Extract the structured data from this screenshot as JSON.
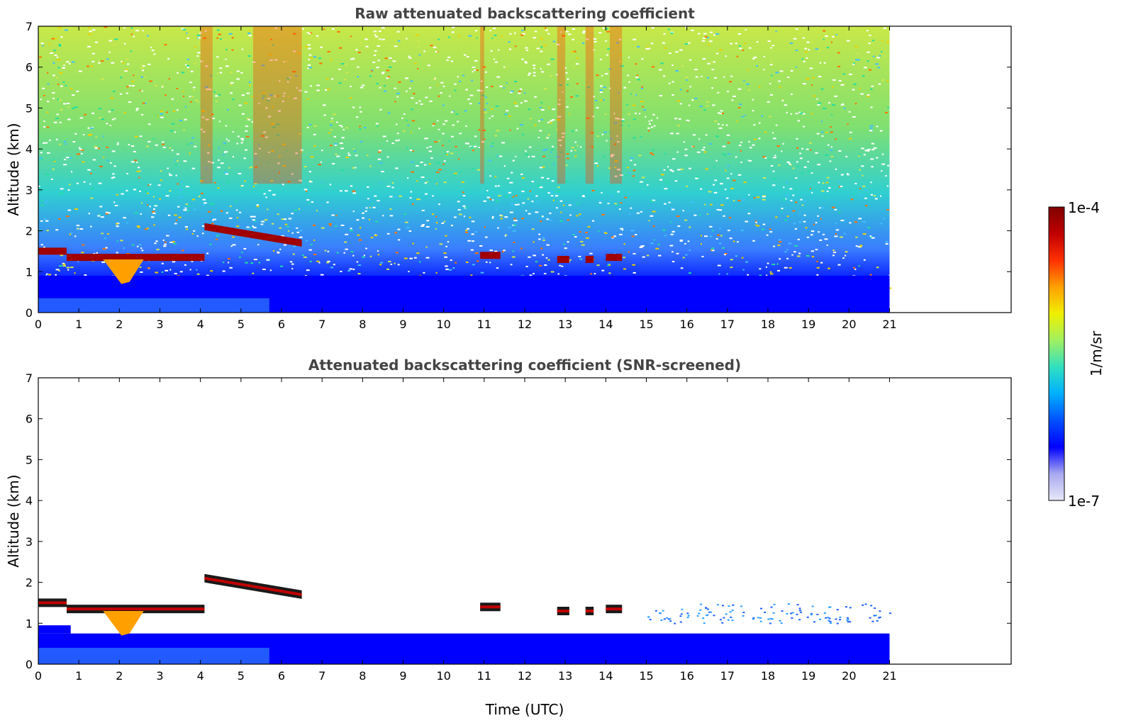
{
  "chart_data": [
    {
      "type": "heatmap",
      "title": "Raw attenuated backscattering coefficient",
      "xlabel": "",
      "ylabel": "Altitude (km)",
      "xlim": [
        0,
        24
      ],
      "ylim": [
        0,
        7
      ],
      "xticks": [
        "0",
        "1",
        "2",
        "3",
        "4",
        "5",
        "6",
        "7",
        "8",
        "9",
        "10",
        "11",
        "12",
        "13",
        "14",
        "15",
        "16",
        "17",
        "18",
        "19",
        "20",
        "21"
      ],
      "yticks": [
        "0",
        "1",
        "2",
        "3",
        "4",
        "5",
        "6",
        "7"
      ],
      "data_extent_x": [
        0,
        21
      ],
      "cloud_layers": [
        {
          "x": [
            0,
            0.7
          ],
          "y": 1.5
        },
        {
          "x": [
            0.7,
            4.1
          ],
          "y": 1.35
        },
        {
          "x": [
            4.1,
            6.5
          ],
          "y": 2.1,
          "y_end": 1.7
        },
        {
          "x": [
            10.9,
            11.4
          ],
          "y": 1.4
        },
        {
          "x": [
            12.8,
            13.1
          ],
          "y": 1.3
        },
        {
          "x": [
            13.5,
            13.7
          ],
          "y": 1.3
        },
        {
          "x": [
            14.0,
            14.4
          ],
          "y": 1.35
        }
      ]
    },
    {
      "type": "heatmap",
      "title": "Attenuated backscattering coefficient (SNR-screened)",
      "xlabel": "Time (UTC)",
      "ylabel": "Altitude (km)",
      "xlim": [
        0,
        24
      ],
      "ylim": [
        0,
        7
      ],
      "xticks": [
        "0",
        "1",
        "2",
        "3",
        "4",
        "5",
        "6",
        "7",
        "8",
        "9",
        "10",
        "11",
        "12",
        "13",
        "14",
        "15",
        "16",
        "17",
        "18",
        "19",
        "20",
        "21"
      ],
      "yticks": [
        "0",
        "1",
        "2",
        "3",
        "4",
        "5",
        "6",
        "7"
      ],
      "data_extent_x": [
        0,
        21
      ]
    }
  ],
  "colorbar": {
    "label": "1/m/sr",
    "max_label": "1e-4",
    "min_label": "1e-7",
    "scale": "log",
    "range": [
      1e-07,
      0.0001
    ],
    "colormap": [
      "#e8e8f8",
      "#a8a8f0",
      "#0000ff",
      "#0050ff",
      "#00b0ff",
      "#30e0c0",
      "#a0f060",
      "#f0f000",
      "#ffa000",
      "#ff3000",
      "#c00000",
      "#800000"
    ]
  }
}
